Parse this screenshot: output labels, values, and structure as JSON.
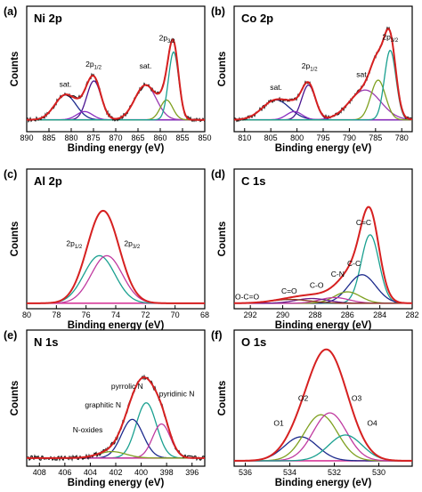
{
  "chart_data": [
    {
      "id": "a",
      "letter": "(a)",
      "title": "Ni 2p",
      "type": "line",
      "xlabel": "Binding energy (eV)",
      "ylabel": "Counts",
      "xlim": [
        890,
        850
      ],
      "xticks": [
        890,
        885,
        880,
        875,
        870,
        865,
        860,
        855,
        850
      ],
      "baseline": 0.1,
      "noise": 0.05,
      "envelope_color": "#d62020",
      "data_color": "#111111",
      "background_color": "#d83a9a",
      "peaks": [
        {
          "c": 881.3,
          "w": 2.4,
          "h": 0.3,
          "color": "#1c2a8c"
        },
        {
          "c": 874.9,
          "w": 1.6,
          "h": 0.47,
          "color": "#4a1490"
        },
        {
          "c": 877.0,
          "w": 1.8,
          "h": 0.1,
          "color": "#8a2fc0"
        },
        {
          "c": 863.3,
          "w": 2.4,
          "h": 0.42,
          "color": "#9a3ab0"
        },
        {
          "c": 858.6,
          "w": 1.4,
          "h": 0.24,
          "color": "#7fa020"
        },
        {
          "c": 857.0,
          "w": 1.15,
          "h": 0.82,
          "color": "#1aa090"
        }
      ],
      "labels": [
        {
          "text": "sat.",
          "x": 881.3,
          "y": 0.5
        },
        {
          "text": "2p",
          "sub": "1/2",
          "x": 875.0,
          "y": 0.74
        },
        {
          "text": "sat.",
          "x": 863.3,
          "y": 0.72
        },
        {
          "text": "2p",
          "sub": "3/2",
          "x": 858.5,
          "y": 1.06
        }
      ]
    },
    {
      "id": "b",
      "letter": "(b)",
      "title": "Co 2p",
      "type": "line",
      "xlabel": "Binding energy (eV)",
      "ylabel": "Counts",
      "xlim": [
        812,
        778
      ],
      "xticks": [
        810,
        805,
        800,
        795,
        790,
        785,
        780
      ],
      "baseline": 0.1,
      "noise": 0.05,
      "envelope_color": "#d62020",
      "data_color": "#111111",
      "background_color": "#d83a9a",
      "peaks": [
        {
          "c": 804.0,
          "w": 2.6,
          "h": 0.24,
          "color": "#1c2a8c"
        },
        {
          "c": 797.8,
          "w": 1.3,
          "h": 0.42,
          "color": "#4a1490"
        },
        {
          "c": 800.5,
          "w": 1.5,
          "h": 0.1,
          "color": "#8a2fc0"
        },
        {
          "c": 787.0,
          "w": 3.0,
          "h": 0.36,
          "color": "#9a3ab0"
        },
        {
          "c": 784.5,
          "w": 1.4,
          "h": 0.48,
          "color": "#7fa020"
        },
        {
          "c": 782.2,
          "w": 1.1,
          "h": 0.84,
          "color": "#1aa090"
        }
      ],
      "labels": [
        {
          "text": "sat.",
          "x": 804.0,
          "y": 0.46
        },
        {
          "text": "2p",
          "sub": "1/2",
          "x": 797.6,
          "y": 0.72
        },
        {
          "text": "sat.",
          "x": 787.5,
          "y": 0.62
        },
        {
          "text": "2p",
          "sub": "3/2",
          "x": 782.2,
          "y": 1.07
        }
      ]
    },
    {
      "id": "c",
      "letter": "(c)",
      "title": "Al 2p",
      "type": "line",
      "xlabel": "Binding energy (eV)",
      "ylabel": "Counts",
      "xlim": [
        80,
        68
      ],
      "xticks": [
        80,
        78,
        76,
        74,
        72,
        70,
        68
      ],
      "baseline": 0.02,
      "noise": 0.0,
      "envelope_color": "#d62020",
      "data_color": "#b11a1a",
      "background_color": "#d83a9a",
      "peaks": [
        {
          "c": 75.1,
          "w": 1.05,
          "h": 0.5,
          "color": "#1aa090"
        },
        {
          "c": 74.6,
          "w": 1.05,
          "h": 0.5,
          "color": "#c03aa0"
        }
      ],
      "labels": [
        {
          "text": "2p",
          "sub": "1/2",
          "x": 76.8,
          "y": 0.62
        },
        {
          "text": "2p",
          "sub": "3/2",
          "x": 72.9,
          "y": 0.62
        }
      ]
    },
    {
      "id": "d",
      "letter": "(d)",
      "title": "C 1s",
      "type": "line",
      "xlabel": "Binding energy (eV)",
      "ylabel": "Counts",
      "xlim": [
        293,
        282
      ],
      "xticks": [
        292,
        290,
        288,
        286,
        284,
        282
      ],
      "baseline": 0.02,
      "noise": 0.0,
      "envelope_color": "#d62020",
      "data_color": "#b11a1a",
      "background_color": "#d83a9a",
      "peaks": [
        {
          "c": 284.6,
          "w": 0.55,
          "h": 0.72,
          "color": "#1aa090"
        },
        {
          "c": 285.1,
          "w": 0.85,
          "h": 0.3,
          "color": "#1c2a8c"
        },
        {
          "c": 286.0,
          "w": 0.8,
          "h": 0.12,
          "color": "#7fa020"
        },
        {
          "c": 286.8,
          "w": 0.9,
          "h": 0.06,
          "color": "#c03aa0"
        },
        {
          "c": 288.2,
          "w": 1.0,
          "h": 0.05,
          "color": "#6a1a8a"
        },
        {
          "c": 289.5,
          "w": 1.2,
          "h": 0.04,
          "color": "#8b3a1a"
        }
      ],
      "labels": [
        {
          "text": "C=C",
          "x": 285.0,
          "y": 0.84
        },
        {
          "text": "C-C",
          "x": 285.6,
          "y": 0.41
        },
        {
          "text": "C-N",
          "x": 286.6,
          "y": 0.3
        },
        {
          "text": "C-O",
          "x": 287.9,
          "y": 0.18
        },
        {
          "text": "C=O",
          "x": 289.6,
          "y": 0.12
        },
        {
          "text": "O-C=O",
          "x": 292.2,
          "y": 0.06
        }
      ]
    },
    {
      "id": "e",
      "letter": "(e)",
      "title": "N 1s",
      "type": "line",
      "xlabel": "Binding energy (eV)",
      "ylabel": "Counts",
      "xlim": [
        409,
        395
      ],
      "xticks": [
        408,
        406,
        404,
        402,
        400,
        398,
        396
      ],
      "baseline": 0.05,
      "noise": 0.05,
      "envelope_color": "#d62020",
      "data_color": "#111111",
      "background_color": "#d83a9a",
      "peaks": [
        {
          "c": 399.6,
          "w": 0.8,
          "h": 0.6,
          "color": "#1aa090"
        },
        {
          "c": 400.7,
          "w": 0.85,
          "h": 0.42,
          "color": "#1c2a8c"
        },
        {
          "c": 398.4,
          "w": 0.7,
          "h": 0.37,
          "color": "#c03aa0"
        },
        {
          "c": 402.3,
          "w": 1.1,
          "h": 0.07,
          "color": "#7fa020"
        }
      ],
      "labels": [
        {
          "text": "pyrrolic N",
          "x": 401.1,
          "y": 0.8
        },
        {
          "text": "graphitic N",
          "x": 403.0,
          "y": 0.6
        },
        {
          "text": "pyridinic N",
          "x": 397.2,
          "y": 0.72
        },
        {
          "text": "N-oxides",
          "x": 404.2,
          "y": 0.33
        }
      ]
    },
    {
      "id": "f",
      "letter": "(f)",
      "title": "O 1s",
      "type": "line",
      "xlabel": "Binding energy (eV)",
      "ylabel": "Counts",
      "xlim": [
        536.5,
        528.5
      ],
      "xticks": [
        536,
        534,
        532,
        530
      ],
      "baseline": 0.02,
      "noise": 0.0,
      "envelope_color": "#d62020",
      "data_color": "#b11a1a",
      "background_color": "#d83a9a",
      "peaks": [
        {
          "c": 533.5,
          "w": 0.75,
          "h": 0.26,
          "color": "#1c2a8c"
        },
        {
          "c": 532.6,
          "w": 0.75,
          "h": 0.5,
          "color": "#7fa020"
        },
        {
          "c": 532.2,
          "w": 0.75,
          "h": 0.52,
          "color": "#c03aa0"
        },
        {
          "c": 531.5,
          "w": 0.75,
          "h": 0.28,
          "color": "#1aa090"
        }
      ],
      "labels": [
        {
          "text": "O1",
          "x": 534.5,
          "y": 0.4
        },
        {
          "text": "O2",
          "x": 533.4,
          "y": 0.67
        },
        {
          "text": "O3",
          "x": 531.0,
          "y": 0.67
        },
        {
          "text": "O4",
          "x": 530.3,
          "y": 0.4
        }
      ]
    }
  ]
}
